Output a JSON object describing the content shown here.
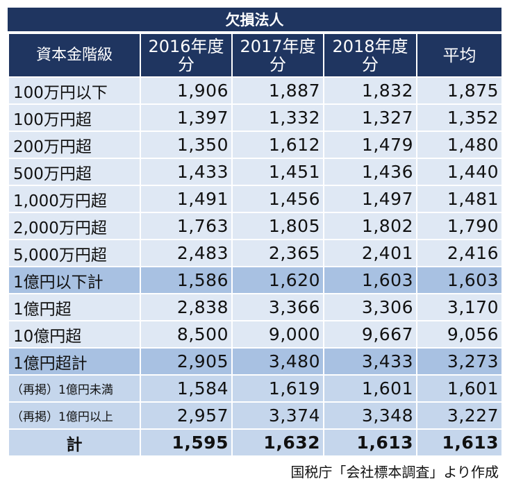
{
  "title": "欠損法人",
  "headers": [
    "資本金階級",
    "2016年度分",
    "2017年度分",
    "2018年度分",
    "平均"
  ],
  "rows": [
    {
      "label": "100万円以下",
      "values": [
        "1,906",
        "1,887",
        "1,832",
        "1,875"
      ],
      "shade": "light"
    },
    {
      "label": "100万円超",
      "values": [
        "1,397",
        "1,332",
        "1,327",
        "1,352"
      ],
      "shade": "light"
    },
    {
      "label": "200万円超",
      "values": [
        "1,350",
        "1,612",
        "1,479",
        "1,480"
      ],
      "shade": "light"
    },
    {
      "label": "500万円超",
      "values": [
        "1,433",
        "1,451",
        "1,436",
        "1,440"
      ],
      "shade": "light"
    },
    {
      "label": "1,000万円超",
      "values": [
        "1,491",
        "1,456",
        "1,497",
        "1,481"
      ],
      "shade": "light"
    },
    {
      "label": "2,000万円超",
      "values": [
        "1,763",
        "1,805",
        "1,802",
        "1,790"
      ],
      "shade": "light"
    },
    {
      "label": "5,000万円超",
      "values": [
        "2,483",
        "2,365",
        "2,401",
        "2,416"
      ],
      "shade": "light"
    },
    {
      "label": "1億円以下計",
      "values": [
        "1,586",
        "1,620",
        "1,603",
        "1,603"
      ],
      "shade": "dark"
    },
    {
      "label": "1億円超",
      "values": [
        "2,838",
        "3,366",
        "3,306",
        "3,170"
      ],
      "shade": "light"
    },
    {
      "label": "10億円超",
      "values": [
        "8,500",
        "9,000",
        "9,667",
        "9,056"
      ],
      "shade": "light"
    },
    {
      "label": "1億円超計",
      "values": [
        "2,905",
        "3,480",
        "3,433",
        "3,273"
      ],
      "shade": "dark"
    },
    {
      "label": "（再掲）1億円未満",
      "values": [
        "1,584",
        "1,619",
        "1,601",
        "1,601"
      ],
      "shade": "mid"
    },
    {
      "label": "（再掲）1億円以上",
      "values": [
        "2,957",
        "3,374",
        "3,348",
        "3,227"
      ],
      "shade": "mid"
    },
    {
      "label": "計",
      "values": [
        "1,595",
        "1,632",
        "1,613",
        "1,613"
      ],
      "shade": "mid"
    }
  ],
  "source": "国税庁「会社標本調査」より作成"
}
